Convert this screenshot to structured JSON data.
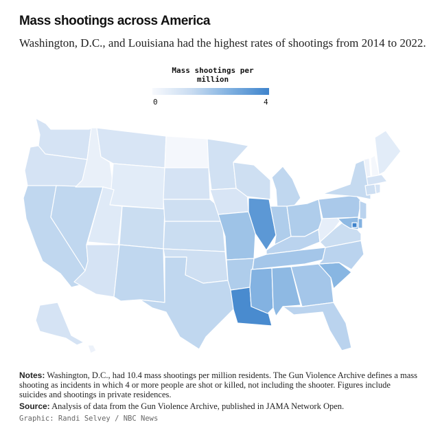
{
  "header": {
    "title": "Mass shootings across America",
    "subtitle": "Washington, D.C., and Louisiana had the highest rates of shootings from 2014 to 2022."
  },
  "legend": {
    "title": "Mass shootings per million",
    "min_label": "0",
    "max_label": "4",
    "color_low": "#f7f9fd",
    "color_high": "#3f84cc"
  },
  "footer": {
    "notes_label": "Notes:",
    "notes_text": "Washington, D.C., had 10.4 mass shootings per million residents. The Gun Violence Archive defines a mass shooting as incidents in which 4 or more people are shot or killed, not including the shooter. Figures include suicides and shootings in private residences.",
    "source_label": "Source:",
    "source_text": "Analysis of data from the Gun Violence Archive, published in JAMA Network Open.",
    "credit": "Graphic: Randi Selvey / NBC News"
  },
  "chart_data": {
    "type": "choropleth",
    "metric": "Mass shootings per million",
    "scale": [
      0,
      4
    ],
    "regions": [
      {
        "state": "WA",
        "value": 1.0
      },
      {
        "state": "OR",
        "value": 1.0
      },
      {
        "state": "CA",
        "value": 1.5
      },
      {
        "state": "NV",
        "value": 1.5
      },
      {
        "state": "ID",
        "value": 0.4
      },
      {
        "state": "MT",
        "value": 0.9
      },
      {
        "state": "WY",
        "value": 0.6
      },
      {
        "state": "UT",
        "value": 0.7
      },
      {
        "state": "AZ",
        "value": 1.0
      },
      {
        "state": "CO",
        "value": 1.3
      },
      {
        "state": "NM",
        "value": 1.5
      },
      {
        "state": "ND",
        "value": 0.1
      },
      {
        "state": "SD",
        "value": 1.0
      },
      {
        "state": "NE",
        "value": 1.2
      },
      {
        "state": "KS",
        "value": 1.3
      },
      {
        "state": "OK",
        "value": 1.2
      },
      {
        "state": "TX",
        "value": 1.5
      },
      {
        "state": "MN",
        "value": 1.1
      },
      {
        "state": "IA",
        "value": 0.9
      },
      {
        "state": "MO",
        "value": 2.1
      },
      {
        "state": "AR",
        "value": 1.8
      },
      {
        "state": "LA",
        "value": 3.8
      },
      {
        "state": "WI",
        "value": 1.2
      },
      {
        "state": "IL",
        "value": 3.4
      },
      {
        "state": "MI",
        "value": 1.5
      },
      {
        "state": "IN",
        "value": 1.8
      },
      {
        "state": "OH",
        "value": 1.8
      },
      {
        "state": "KY",
        "value": 1.6
      },
      {
        "state": "TN",
        "value": 2.0
      },
      {
        "state": "MS",
        "value": 2.6
      },
      {
        "state": "AL",
        "value": 2.4
      },
      {
        "state": "GA",
        "value": 2.0
      },
      {
        "state": "FL",
        "value": 1.6
      },
      {
        "state": "SC",
        "value": 2.5
      },
      {
        "state": "NC",
        "value": 1.6
      },
      {
        "state": "VA",
        "value": 1.3
      },
      {
        "state": "WV",
        "value": 0.5
      },
      {
        "state": "PA",
        "value": 1.9
      },
      {
        "state": "NY",
        "value": 1.4
      },
      {
        "state": "NJ",
        "value": 1.6
      },
      {
        "state": "DE",
        "value": 2.6
      },
      {
        "state": "MD",
        "value": 2.4
      },
      {
        "state": "DC",
        "value": 10.4
      },
      {
        "state": "VT",
        "value": 0.3
      },
      {
        "state": "NH",
        "value": 0.1
      },
      {
        "state": "ME",
        "value": 0.6
      },
      {
        "state": "MA",
        "value": 1.0
      },
      {
        "state": "CT",
        "value": 1.2
      },
      {
        "state": "RI",
        "value": 1.0
      },
      {
        "state": "AK",
        "value": 1.0
      },
      {
        "state": "HI",
        "value": 0.3
      }
    ]
  }
}
